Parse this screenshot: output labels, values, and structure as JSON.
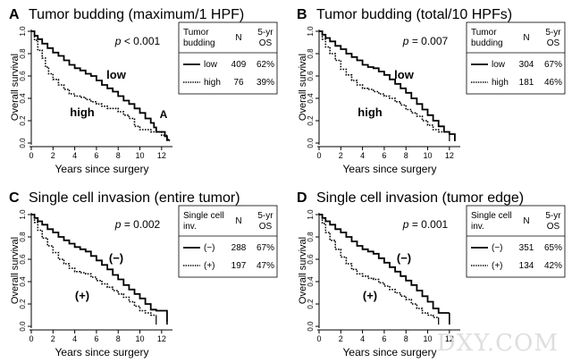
{
  "chart_data": [
    {
      "type": "line",
      "panel_letter": "A",
      "title": "Tumor budding (maximum/1 HPF)",
      "xlabel": "Years since surgery",
      "ylabel": "Overall survival",
      "xticks": [
        "0",
        "2",
        "4",
        "6",
        "8",
        "10",
        "12"
      ],
      "yticks": [
        "0.0",
        "0.2",
        "0.4",
        "0.6",
        "0.8",
        "1.0"
      ],
      "xlim": [
        0,
        13
      ],
      "ylim": [
        0,
        1
      ],
      "p_value": "p < 0.001",
      "table": {
        "header": [
          "Tumor budding",
          "N",
          "5-yr OS"
        ],
        "rows": [
          [
            "low",
            "409",
            "62%"
          ],
          [
            "high",
            "76",
            "39%"
          ]
        ]
      },
      "curve_labels": [
        "low",
        "high"
      ],
      "annotation": "A",
      "series": [
        {
          "label": "low",
          "style": "solid",
          "x": [
            0,
            0.3,
            0.6,
            1,
            1.5,
            2,
            2.5,
            3,
            3.5,
            4,
            4.5,
            5,
            5.5,
            6,
            6.5,
            7,
            7.5,
            8,
            8.5,
            9,
            9.5,
            10,
            10.5,
            11,
            11.3,
            11.5,
            12,
            12.3,
            12.5,
            12.7
          ],
          "y": [
            1,
            0.96,
            0.93,
            0.89,
            0.85,
            0.81,
            0.78,
            0.74,
            0.7,
            0.67,
            0.65,
            0.62,
            0.6,
            0.56,
            0.52,
            0.49,
            0.46,
            0.42,
            0.38,
            0.35,
            0.31,
            0.27,
            0.22,
            0.18,
            0.14,
            0.1,
            0.1,
            0.06,
            0.03,
            0.03
          ]
        },
        {
          "label": "high",
          "style": "dotted",
          "x": [
            0,
            0.3,
            0.6,
            1,
            1.3,
            1.6,
            2,
            2.5,
            3,
            3.5,
            4,
            4.5,
            5,
            5.5,
            6,
            6.5,
            7,
            7.5,
            8,
            8.5,
            9,
            9.5,
            10,
            10.5,
            11,
            11.5,
            12,
            12.5
          ],
          "y": [
            1,
            0.92,
            0.83,
            0.76,
            0.68,
            0.62,
            0.57,
            0.52,
            0.48,
            0.44,
            0.42,
            0.41,
            0.39,
            0.37,
            0.35,
            0.33,
            0.31,
            0.31,
            0.28,
            0.25,
            0.22,
            0.15,
            0.12,
            0.12,
            0.1,
            0.1,
            0.07,
            0.07
          ]
        }
      ]
    },
    {
      "type": "line",
      "panel_letter": "B",
      "title": "Tumor budding (total/10 HPFs)",
      "xlabel": "Years since surgery",
      "ylabel": "Overall survival",
      "xticks": [
        "0",
        "2",
        "4",
        "6",
        "8",
        "10",
        "12"
      ],
      "yticks": [
        "0.0",
        "0.2",
        "0.4",
        "0.6",
        "0.8",
        "1.0"
      ],
      "xlim": [
        0,
        13
      ],
      "ylim": [
        0,
        1
      ],
      "p_value": "p = 0.007",
      "table": {
        "header": [
          "Tumor budding",
          "N",
          "5-yr OS"
        ],
        "rows": [
          [
            "low",
            "304",
            "67%"
          ],
          [
            "high",
            "181",
            "46%"
          ]
        ]
      },
      "curve_labels": [
        "low",
        "high"
      ],
      "annotation": "",
      "series": [
        {
          "label": "low",
          "style": "solid",
          "x": [
            0,
            0.3,
            0.6,
            1,
            1.5,
            2,
            2.5,
            3,
            3.5,
            4,
            4.5,
            5,
            5.5,
            6,
            6.5,
            7,
            7.5,
            8,
            8.5,
            9,
            9.5,
            10,
            10.5,
            11,
            11.5,
            12,
            12.5
          ],
          "y": [
            1,
            0.97,
            0.94,
            0.91,
            0.87,
            0.84,
            0.8,
            0.77,
            0.74,
            0.7,
            0.68,
            0.67,
            0.64,
            0.61,
            0.57,
            0.53,
            0.49,
            0.45,
            0.4,
            0.35,
            0.3,
            0.25,
            0.2,
            0.15,
            0.1,
            0.08,
            0.02
          ]
        },
        {
          "label": "high",
          "style": "dotted",
          "x": [
            0,
            0.3,
            0.6,
            1,
            1.5,
            2,
            2.5,
            3,
            3.5,
            4,
            4.5,
            5,
            5.5,
            6,
            6.5,
            7,
            7.5,
            8,
            8.5,
            9,
            9.5,
            10,
            10.5,
            11,
            11.5,
            12
          ],
          "y": [
            1,
            0.93,
            0.86,
            0.8,
            0.74,
            0.66,
            0.61,
            0.56,
            0.52,
            0.49,
            0.48,
            0.46,
            0.44,
            0.42,
            0.4,
            0.37,
            0.34,
            0.3,
            0.27,
            0.24,
            0.2,
            0.16,
            0.12,
            0.1,
            0.1,
            0.08
          ]
        }
      ]
    },
    {
      "type": "line",
      "panel_letter": "C",
      "title": "Single cell invasion (entire tumor)",
      "xlabel": "Years since surgery",
      "ylabel": "Overall survival",
      "xticks": [
        "0",
        "2",
        "4",
        "6",
        "8",
        "10",
        "12"
      ],
      "yticks": [
        "0.0",
        "0.2",
        "0.4",
        "0.6",
        "0.8",
        "1.0"
      ],
      "xlim": [
        0,
        13
      ],
      "ylim": [
        0,
        1
      ],
      "p_value": "p = 0.002",
      "table": {
        "header": [
          "Single cell inv.",
          "N",
          "5-yr OS"
        ],
        "rows": [
          [
            "(−)",
            "288",
            "67%"
          ],
          [
            "(+)",
            "197",
            "47%"
          ]
        ]
      },
      "curve_labels": [
        "(−)",
        "(+)"
      ],
      "annotation": "",
      "series": [
        {
          "label": "(−)",
          "style": "solid",
          "x": [
            0,
            0.3,
            0.6,
            1,
            1.5,
            2,
            2.5,
            3,
            3.5,
            4,
            4.5,
            5,
            5.5,
            6,
            6.5,
            7,
            7.5,
            8,
            8.5,
            9,
            9.5,
            10,
            10.5,
            11,
            11.5,
            12,
            12.5
          ],
          "y": [
            1,
            0.97,
            0.94,
            0.91,
            0.87,
            0.84,
            0.8,
            0.77,
            0.74,
            0.71,
            0.69,
            0.67,
            0.63,
            0.59,
            0.55,
            0.51,
            0.46,
            0.42,
            0.37,
            0.33,
            0.29,
            0.25,
            0.2,
            0.15,
            0.14,
            0.14,
            0.04
          ]
        },
        {
          "label": "(+)",
          "style": "dotted",
          "x": [
            0,
            0.3,
            0.6,
            1,
            1.5,
            2,
            2.5,
            3,
            3.5,
            4,
            4.5,
            5,
            5.5,
            6,
            6.5,
            7,
            7.5,
            8,
            8.5,
            9,
            9.5,
            10,
            10.5,
            11,
            11.5
          ],
          "y": [
            1,
            0.93,
            0.86,
            0.79,
            0.72,
            0.66,
            0.6,
            0.56,
            0.52,
            0.49,
            0.48,
            0.47,
            0.44,
            0.41,
            0.38,
            0.35,
            0.32,
            0.29,
            0.26,
            0.22,
            0.18,
            0.14,
            0.12,
            0.1,
            0.1
          ]
        }
      ]
    },
    {
      "type": "line",
      "panel_letter": "D",
      "title": "Single cell invasion (tumor edge)",
      "xlabel": "Years since surgery",
      "ylabel": "Overall survival",
      "xticks": [
        "0",
        "2",
        "4",
        "6",
        "8",
        "10",
        "12"
      ],
      "yticks": [
        "0.0",
        "0.2",
        "0.4",
        "0.6",
        "0.8",
        "1.0"
      ],
      "xlim": [
        0,
        13
      ],
      "ylim": [
        0,
        1
      ],
      "p_value": "p = 0.001",
      "table": {
        "header": [
          "Single cell inv.",
          "N",
          "5-yr OS"
        ],
        "rows": [
          [
            "(−)",
            "351",
            "65%"
          ],
          [
            "(+)",
            "134",
            "42%"
          ]
        ]
      },
      "curve_labels": [
        "(−)",
        "(+)"
      ],
      "annotation": "",
      "series": [
        {
          "label": "(−)",
          "style": "solid",
          "x": [
            0,
            0.3,
            0.6,
            1,
            1.5,
            2,
            2.5,
            3,
            3.5,
            4,
            4.5,
            5,
            5.5,
            6,
            6.5,
            7,
            7.5,
            8,
            8.5,
            9,
            9.5,
            10,
            10.5,
            11,
            11.5,
            12
          ],
          "y": [
            1,
            0.97,
            0.94,
            0.91,
            0.87,
            0.84,
            0.8,
            0.76,
            0.72,
            0.69,
            0.67,
            0.65,
            0.61,
            0.57,
            0.53,
            0.49,
            0.45,
            0.41,
            0.37,
            0.32,
            0.27,
            0.22,
            0.16,
            0.12,
            0.12,
            0.12
          ]
        },
        {
          "label": "(+)",
          "style": "dotted",
          "x": [
            0,
            0.3,
            0.6,
            1,
            1.5,
            2,
            2.5,
            3,
            3.5,
            4,
            4.5,
            5,
            5.5,
            6,
            6.5,
            7,
            7.5,
            8,
            8.5,
            9,
            9.5,
            10,
            10.5,
            11
          ],
          "y": [
            1,
            0.92,
            0.84,
            0.77,
            0.69,
            0.62,
            0.56,
            0.51,
            0.47,
            0.45,
            0.43,
            0.42,
            0.39,
            0.36,
            0.33,
            0.3,
            0.27,
            0.24,
            0.2,
            0.16,
            0.12,
            0.1,
            0.08,
            0.08
          ]
        }
      ]
    }
  ],
  "watermark": "DXY.COM"
}
